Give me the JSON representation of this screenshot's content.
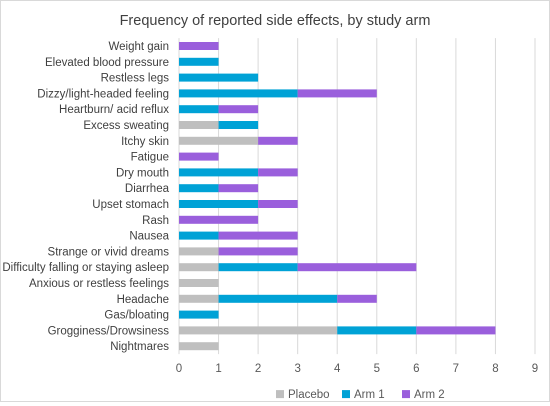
{
  "chart_data": {
    "type": "bar",
    "orientation": "horizontal",
    "stacked": true,
    "title": "Frequency of reported side effects, by study arm",
    "xlabel": "",
    "ylabel": "",
    "xlim": [
      0,
      9
    ],
    "xticks": [
      0,
      1,
      2,
      3,
      4,
      5,
      6,
      7,
      8,
      9
    ],
    "grid": true,
    "legend_position": "bottom",
    "categories": [
      "Weight gain",
      "Elevated blood pressure",
      "Restless legs",
      "Dizzy/light-headed feeling",
      "Heartburn/ acid reflux",
      "Excess sweating",
      "Itchy skin",
      "Fatigue",
      "Dry mouth",
      "Diarrhea",
      "Upset stomach",
      "Rash",
      "Nausea",
      "Strange or vivid dreams",
      "Difficulty falling or staying asleep",
      "Anxious or restless feelings",
      "Headache",
      "Gas/bloating",
      "Grogginess/Drowsiness",
      "Nightmares"
    ],
    "series": [
      {
        "name": "Placebo",
        "color": "#bfbfbf",
        "values": [
          0,
          0,
          0,
          0,
          0,
          1,
          2,
          0,
          0,
          0,
          0,
          0,
          0,
          1,
          1,
          1,
          1,
          0,
          4,
          1
        ]
      },
      {
        "name": "Arm 1",
        "color": "#00a2d6",
        "values": [
          0,
          1,
          2,
          3,
          1,
          1,
          0,
          0,
          2,
          1,
          2,
          0,
          1,
          0,
          2,
          0,
          3,
          1,
          2,
          0
        ]
      },
      {
        "name": "Arm 2",
        "color": "#9a5fdc",
        "values": [
          1,
          0,
          0,
          2,
          1,
          0,
          1,
          1,
          1,
          1,
          1,
          2,
          2,
          2,
          3,
          0,
          1,
          0,
          2,
          0
        ]
      }
    ]
  }
}
